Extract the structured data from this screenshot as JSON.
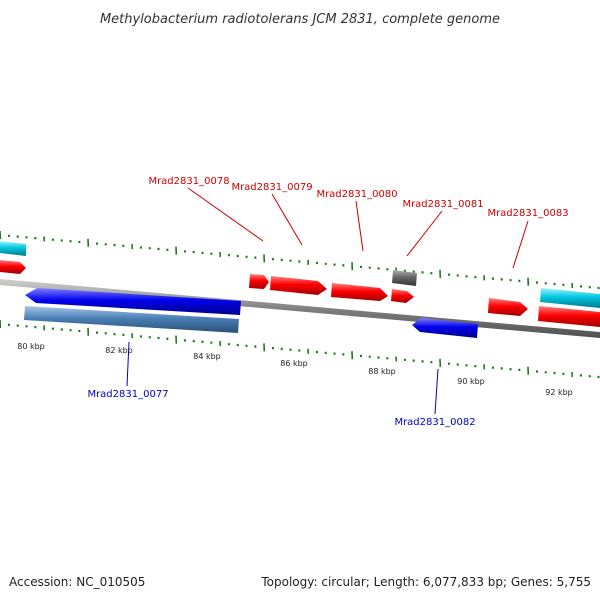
{
  "title": "Methylobacterium radiotolerans JCM 2831, complete genome",
  "footer": {
    "accession": "Accession: NC_010505",
    "summary": "Topology: circular; Length: 6,077,833 bp; Genes: 5,755"
  },
  "colors": {
    "plus_gene": "#ff0000",
    "minus_gene": "#0000ee",
    "rna_or_other": "#00c8e0",
    "pseudo": "#666666",
    "steelblue_feature": "#4a7fb5",
    "tick": "#1a7a1a",
    "label_plus": "#cc0000",
    "label_minus": "#0000cc",
    "backbone": "#808080"
  },
  "kbp_labels": [
    "80 kbp",
    "82 kbp",
    "84 kbp",
    "86 kbp",
    "88 kbp",
    "90 kbp",
    "92 kbp"
  ],
  "gene_labels_top": [
    "Mrad2831_0078",
    "Mrad2831_0079",
    "Mrad2831_0080",
    "Mrad2831_0081",
    "Mrad2831_0083"
  ],
  "gene_labels_bottom": [
    "Mrad2831_0077",
    "Mrad2831_0082"
  ]
}
